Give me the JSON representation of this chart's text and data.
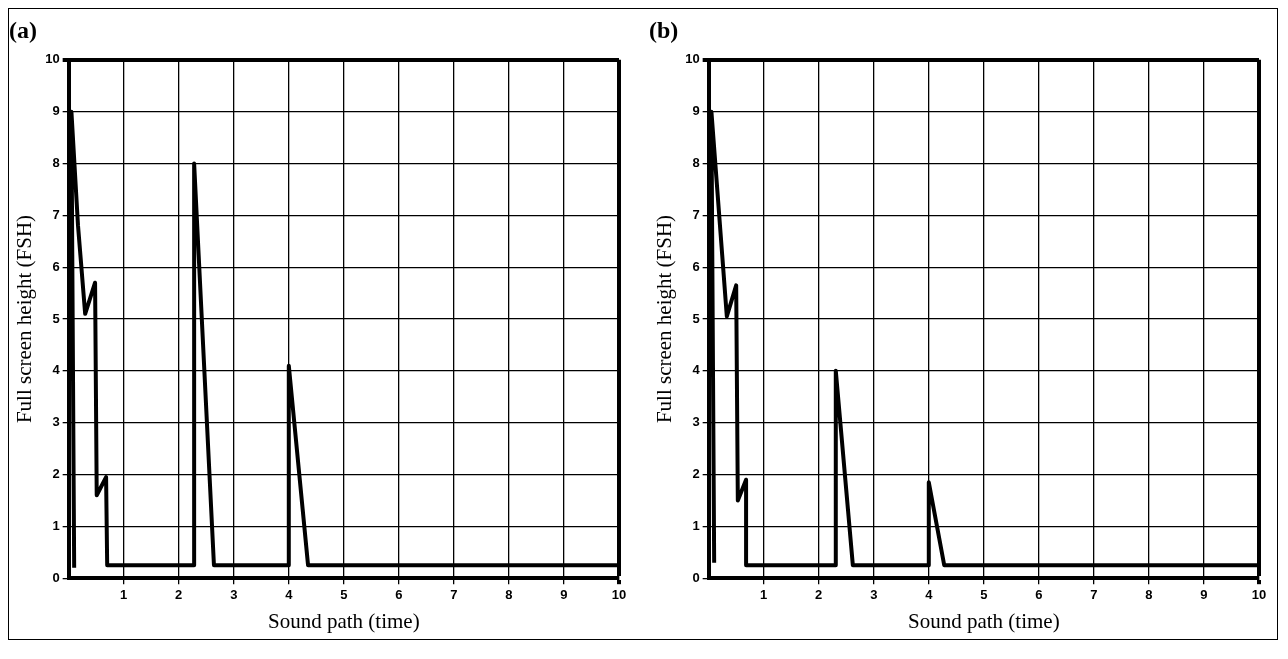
{
  "chart_data": [
    {
      "type": "line",
      "title": "(a)",
      "xlabel": "Sound path (time)",
      "ylabel": "Full screen height (FSH)",
      "xlim": [
        0,
        10
      ],
      "ylim": [
        0,
        10
      ],
      "xticks": [
        1,
        2,
        3,
        4,
        5,
        6,
        7,
        8,
        9,
        10
      ],
      "yticks": [
        0,
        1,
        2,
        3,
        4,
        5,
        6,
        7,
        8,
        9,
        10
      ],
      "grid": true,
      "marker": "none",
      "line_style": "solid",
      "series": [
        {
          "color": "#000000",
          "x": [
            0.1,
            0.05,
            0.17,
            0.3,
            0.48,
            0.51,
            0.68,
            0.7,
            2.28,
            2.28,
            2.64,
            4.0,
            4.0,
            4.35,
            10
          ],
          "values": [
            0.2,
            9,
            6.8,
            5.1,
            5.7,
            1.6,
            1.95,
            0.25,
            0.25,
            8,
            0.25,
            0.25,
            4.1,
            0.25,
            0.25
          ]
        }
      ]
    },
    {
      "type": "line",
      "title": "(b)",
      "xlabel": "Sound path (time)",
      "ylabel": "Full screen height (FSH)",
      "xlim": [
        0,
        10
      ],
      "ylim": [
        0,
        10
      ],
      "xticks": [
        1,
        2,
        3,
        4,
        5,
        6,
        7,
        8,
        9,
        10
      ],
      "yticks": [
        0,
        1,
        2,
        3,
        4,
        5,
        6,
        7,
        8,
        9,
        10
      ],
      "grid": true,
      "marker": "none",
      "line_style": "solid",
      "series": [
        {
          "color": "#000000",
          "x": [
            0.1,
            0.05,
            0.33,
            0.5,
            0.53,
            0.68,
            0.68,
            2.31,
            2.31,
            2.62,
            4.0,
            4.0,
            4.28,
            10
          ],
          "values": [
            0.3,
            9,
            5.05,
            5.65,
            1.5,
            1.9,
            0.25,
            0.25,
            4.0,
            0.25,
            0.25,
            1.85,
            0.25,
            0.25
          ]
        }
      ]
    }
  ]
}
